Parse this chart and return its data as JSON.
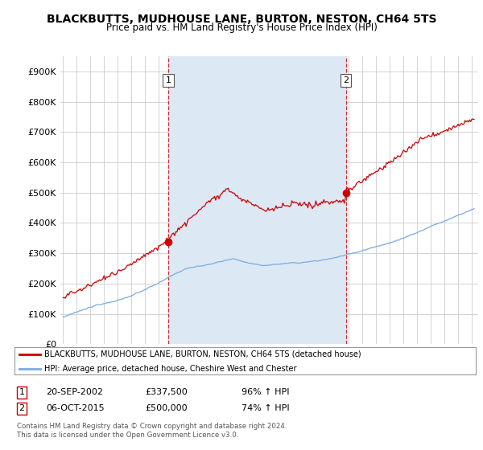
{
  "title": "BLACKBUTTS, MUDHOUSE LANE, BURTON, NESTON, CH64 5TS",
  "subtitle": "Price paid vs. HM Land Registry's House Price Index (HPI)",
  "title_fontsize": 10,
  "subtitle_fontsize": 8.5,
  "ylabel_ticks": [
    "£0",
    "£100K",
    "£200K",
    "£300K",
    "£400K",
    "£500K",
    "£600K",
    "£700K",
    "£800K",
    "£900K"
  ],
  "ytick_values": [
    0,
    100000,
    200000,
    300000,
    400000,
    500000,
    600000,
    700000,
    800000,
    900000
  ],
  "ylim": [
    0,
    950000
  ],
  "xlim_start": 1994.8,
  "xlim_end": 2025.5,
  "background_color": "#ffffff",
  "grid_color": "#cccccc",
  "sale1_x": 2002.72,
  "sale1_price": 337500,
  "sale1_label": "1",
  "sale2_x": 2015.77,
  "sale2_price": 500000,
  "sale2_label": "2",
  "shade_color": "#dde8f5",
  "legend_label_red": "BLACKBUTTS, MUDHOUSE LANE, BURTON, NESTON, CH64 5TS (detached house)",
  "legend_label_blue": "HPI: Average price, detached house, Cheshire West and Chester",
  "footer1": "Contains HM Land Registry data © Crown copyright and database right 2024.",
  "footer2": "This data is licensed under the Open Government Licence v3.0.",
  "table_row1": [
    "1",
    "20-SEP-2002",
    "£337,500",
    "96% ↑ HPI"
  ],
  "table_row2": [
    "2",
    "06-OCT-2015",
    "£500,000",
    "74% ↑ HPI"
  ],
  "red_color": "#cc0000",
  "blue_color": "#7aabe0"
}
